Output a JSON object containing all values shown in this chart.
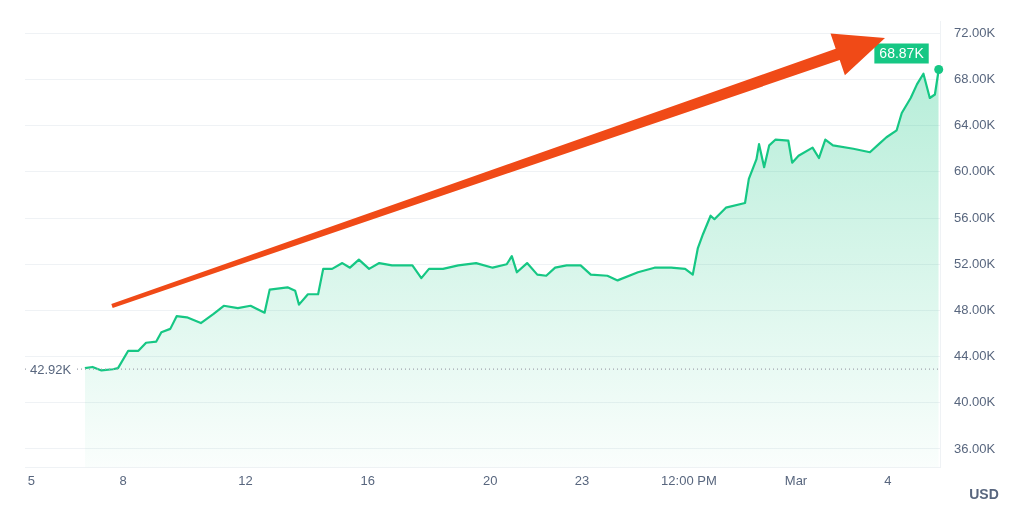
{
  "chart_data": {
    "type": "area",
    "ylabel": "USD",
    "x": [
      "--02-06T18:00",
      "--02-07T00:00",
      "--02-07T07:00",
      "--02-07T16:00",
      "--02-07T20:00",
      "--02-08T04:00",
      "--02-08T12:00",
      "--02-08T18:00",
      "--02-09T02:00",
      "--02-09T06:00",
      "--02-09T13:00",
      "--02-09T18:00",
      "--02-10T02:00",
      "--02-10T13:00",
      "--02-10T23:00",
      "--02-11T07:00",
      "--02-11T18:00",
      "--02-12T04:00",
      "--02-12T15:00",
      "--02-12T19:00",
      "--02-13T09:00",
      "--02-13T15:00",
      "--02-13T18:00",
      "--02-14T01:00",
      "--02-14T09:00",
      "--02-14T13:00",
      "--02-14T20:00",
      "--02-15T04:00",
      "--02-15T10:00",
      "--02-15T17:00",
      "--02-16T01:00",
      "--02-16T09:00",
      "--02-16T19:00",
      "--02-17T11:00",
      "--02-17T18:00",
      "--02-18T00:00",
      "--02-18T11:00",
      "--02-18T23:00",
      "--02-19T13:00",
      "--02-20T02:00",
      "--02-20T13:00",
      "--02-20T17:00",
      "--02-20T21:00",
      "--02-21T05:00",
      "--02-21T13:00",
      "--02-21T20:00",
      "--02-22T03:00",
      "--02-22T12:00",
      "--02-22T23:00",
      "--02-23T07:00",
      "--02-23T20:00",
      "--02-24T04:00",
      "--02-24T20:00",
      "--02-25T09:00",
      "--02-25T22:00",
      "--02-26T09:00",
      "--02-26T15:00",
      "--02-26T19:00",
      "--02-26T23:00",
      "--02-27T05:00",
      "--02-27T08:00",
      "--02-27T17:00",
      "--02-28T08:00",
      "--02-28T11:00",
      "--02-28T17:00",
      "--02-28T19:00",
      "--02-28T23:00",
      "--02-29T03:00",
      "--02-29T08:00",
      "--02-29T18:00",
      "--02-29T21:00",
      "--03-01T02:00",
      "--03-01T13:00",
      "--03-01T18:00",
      "--03-01T23:00",
      "--03-02T05:00",
      "--03-02T21:00",
      "--03-03T10:00",
      "--03-03T17:00",
      "--03-03T23:00",
      "--03-04T07:00",
      "--03-04T11:00",
      "--03-04T18:00",
      "--03-04T23:00",
      "--03-05T04:00",
      "--03-05T09:00",
      "--03-05T13:00",
      "--03-05T16:00"
    ],
    "series": [
      {
        "color": "#16c784",
        "values": [
          43.0,
          43.1,
          42.8,
          42.9,
          43.0,
          44.5,
          44.5,
          45.2,
          45.3,
          46.1,
          46.4,
          47.5,
          47.4,
          46.9,
          47.7,
          48.4,
          48.2,
          48.4,
          47.8,
          49.8,
          50.0,
          49.7,
          48.5,
          49.4,
          49.4,
          51.6,
          51.6,
          52.1,
          51.7,
          52.4,
          51.6,
          52.1,
          51.9,
          51.9,
          50.8,
          51.6,
          51.6,
          51.9,
          52.1,
          51.7,
          52.0,
          52.7,
          51.3,
          52.1,
          51.1,
          51.0,
          51.7,
          51.9,
          51.9,
          51.1,
          51.0,
          50.6,
          51.3,
          51.7,
          51.7,
          51.6,
          51.1,
          53.4,
          54.6,
          56.2,
          55.9,
          56.9,
          57.3,
          59.4,
          61.1,
          62.4,
          60.4,
          62.3,
          62.8,
          62.7,
          60.8,
          61.4,
          62.1,
          61.2,
          62.8,
          62.3,
          62.0,
          61.7,
          62.4,
          63.0,
          63.6,
          65.1,
          66.4,
          67.6,
          68.5,
          66.4,
          66.7,
          68.87
        ]
      }
    ],
    "xlim": [
      "--02-04T19:00",
      "--03-05T17:00"
    ],
    "xticks": [
      {
        "value": "--02-05",
        "label": "5"
      },
      {
        "value": "--02-08",
        "label": "8"
      },
      {
        "value": "--02-12",
        "label": "12"
      },
      {
        "value": "--02-16",
        "label": "16"
      },
      {
        "value": "--02-20",
        "label": "20"
      },
      {
        "value": "--02-23",
        "label": "23"
      },
      {
        "value": "--02-26T12:00",
        "label": "12:00 PM"
      },
      {
        "value": "--03-01",
        "label": "Mar"
      },
      {
        "value": "--03-04",
        "label": "4"
      }
    ],
    "ylim": [
      34.4,
      73
    ],
    "yticks": [
      {
        "value": 36,
        "label": "36.00K"
      },
      {
        "value": 40,
        "label": "40.00K"
      },
      {
        "value": 44,
        "label": "44.00K"
      },
      {
        "value": 48,
        "label": "48.00K"
      },
      {
        "value": 52,
        "label": "52.00K"
      },
      {
        "value": 56,
        "label": "56.00K"
      },
      {
        "value": 60,
        "label": "60.00K"
      },
      {
        "value": 64,
        "label": "64.00K"
      },
      {
        "value": 68,
        "label": "68.00K"
      },
      {
        "value": 72,
        "label": "72.00K"
      }
    ],
    "ref_lines": [
      {
        "axis": "y",
        "value": 42.92,
        "label": "42.92K",
        "color": "#a0a4ad",
        "line_style": "dotted"
      }
    ],
    "annotations": [
      {
        "text": "68.87K",
        "x": "--03-05T16:00",
        "y": 68.87
      }
    ],
    "grid": "y",
    "marker": "none",
    "line_style": "solid",
    "legend": false
  }
}
